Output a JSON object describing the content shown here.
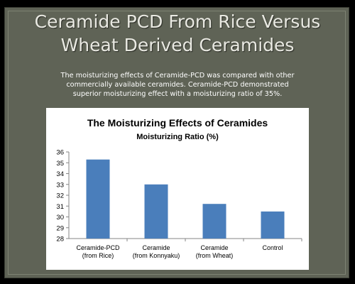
{
  "slide": {
    "title_line1": "Ceramide PCD From Rice Versus",
    "title_line2": "Wheat Derived Ceramides",
    "subtitle_line1": "The moisturizing effects of Ceramide-PCD was compared with other",
    "subtitle_line2": "commercially available ceramides. Ceramide-PCD demonstrated",
    "subtitle_line3": "superior moisturizing effect with a moisturizing ratio of 35%."
  },
  "chart_data": {
    "type": "bar",
    "title": "The Moisturizing Effects of Ceramides",
    "subtitle": "Moisturizing Ratio (%)",
    "categories": [
      [
        "Ceramide-PCD",
        "(from Rice)"
      ],
      [
        "Ceramide",
        "(from Konnyaku)"
      ],
      [
        "Ceramide",
        "(from Wheat)"
      ],
      [
        "Control"
      ]
    ],
    "values": [
      35.3,
      33.0,
      31.2,
      30.5
    ],
    "ylim": [
      28,
      36
    ],
    "yticks": [
      28,
      29,
      30,
      31,
      32,
      33,
      34,
      35,
      36
    ],
    "grid": false,
    "bar_color": "#4a7ebb",
    "axis_color": "#868686"
  }
}
